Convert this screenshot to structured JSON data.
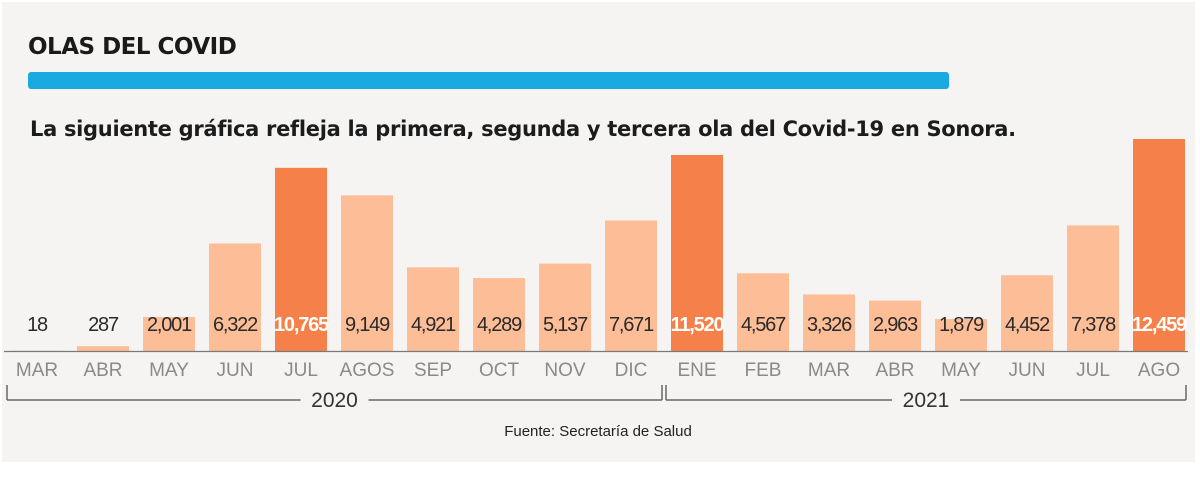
{
  "title": "OLAS DEL COVID",
  "subtitle": "La siguiente gráfica refleja la primera, segunda y tercera ola del Covid-19 en Sonora.",
  "source": "Fuente: Secretaría de Salud",
  "colors": {
    "bar_light": "#fdbd97",
    "bar_peak": "#f6804a",
    "accent_bar": "#18aae0"
  },
  "chart_data": {
    "type": "bar",
    "categories": [
      "MAR",
      "ABR",
      "MAY",
      "JUN",
      "JUL",
      "AGOS",
      "SEP",
      "OCT",
      "NOV",
      "DIC",
      "ENE",
      "FEB",
      "MAR",
      "ABR",
      "MAY",
      "JUN",
      "JUL",
      "AGO"
    ],
    "values": [
      18,
      287,
      2001,
      6322,
      10765,
      9149,
      4921,
      4289,
      5137,
      7671,
      11520,
      4567,
      3326,
      2963,
      1879,
      4452,
      7378,
      12459
    ],
    "value_labels": [
      "18",
      "287",
      "2,001",
      "6,322",
      "10,765",
      "9,149",
      "4,921",
      "4,289",
      "5,137",
      "7,671",
      "11,520",
      "4,567",
      "3,326",
      "2,963",
      "1,879",
      "4,452",
      "7,378",
      "12,459"
    ],
    "peaks": [
      4,
      10,
      17
    ],
    "ylim": [
      0,
      12459
    ],
    "year_groups": [
      {
        "label": "2020",
        "start": 0,
        "end": 9
      },
      {
        "label": "2021",
        "start": 10,
        "end": 17
      }
    ],
    "grid": false
  }
}
